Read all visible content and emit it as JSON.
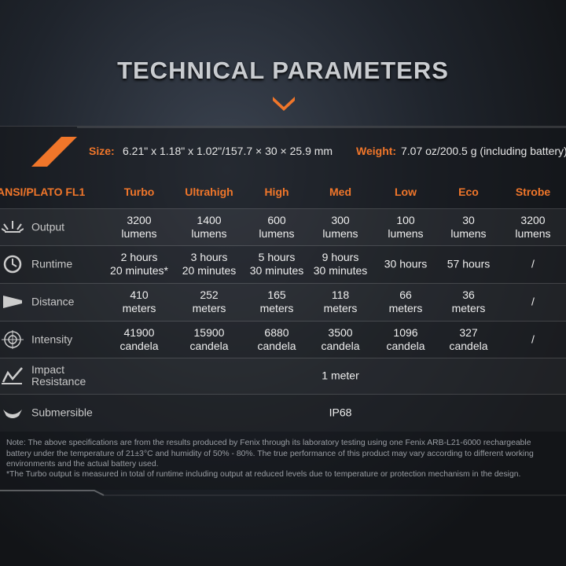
{
  "title": "TECHNICAL PARAMETERS",
  "specs": [
    {
      "label": "Size:",
      "value": "6.21\" x 1.18\" x 1.02\"/157.7 × 30 × 25.9 mm"
    },
    {
      "label": "Weight:",
      "value": "7.07 oz/200.5 g (including battery)"
    }
  ],
  "table": {
    "header": [
      "ANSI/PLATO FL1",
      "Turbo",
      "Ultrahigh",
      "High",
      "Med",
      "Low",
      "Eco",
      "Strobe"
    ],
    "rows": [
      {
        "label": [
          "Output"
        ],
        "cells": [
          [
            "3200",
            "lumens"
          ],
          [
            "1400",
            "lumens"
          ],
          [
            "600",
            "lumens"
          ],
          [
            "300",
            "lumens"
          ],
          [
            "100",
            "lumens"
          ],
          [
            "30",
            "lumens"
          ],
          [
            "3200",
            "lumens"
          ]
        ]
      },
      {
        "label": [
          "Runtime"
        ],
        "cells": [
          [
            "2 hours",
            "20 minutes*"
          ],
          [
            "3 hours",
            "20 minutes"
          ],
          [
            "5 hours",
            "30 minutes"
          ],
          [
            "9 hours",
            "30 minutes"
          ],
          [
            "30 hours"
          ],
          [
            "57 hours"
          ],
          [
            "/"
          ]
        ]
      },
      {
        "label": [
          "Distance"
        ],
        "cells": [
          [
            "410",
            "meters"
          ],
          [
            "252",
            "meters"
          ],
          [
            "165",
            "meters"
          ],
          [
            "118",
            "meters"
          ],
          [
            "66",
            "meters"
          ],
          [
            "36",
            "meters"
          ],
          [
            "/"
          ]
        ]
      },
      {
        "label": [
          "Intensity"
        ],
        "cells": [
          [
            "41900",
            "candela"
          ],
          [
            "15900",
            "candela"
          ],
          [
            "6880",
            "candela"
          ],
          [
            "3500",
            "candela"
          ],
          [
            "1096",
            "candela"
          ],
          [
            "327",
            "candela"
          ],
          [
            "/"
          ]
        ]
      },
      {
        "label": [
          "Impact",
          "Resistance"
        ],
        "cells": [
          [
            "1 meter"
          ]
        ]
      },
      {
        "label": [
          "Submersible"
        ],
        "cells": [
          [
            "IP68"
          ]
        ]
      }
    ]
  },
  "notes": [
    "Note: The above specifications are from the results produced by Fenix through its laboratory testing using one Fenix ARB-L21-6000 rechargeable",
    "battery under the temperature of 21±3°C and humidity of 50% - 80%. The true performance of this product may vary according to different working",
    "environments and the actual battery used.",
    "*The Turbo output is measured in total of runtime including output at reduced levels due to temperature or protection mechanism in the design."
  ]
}
